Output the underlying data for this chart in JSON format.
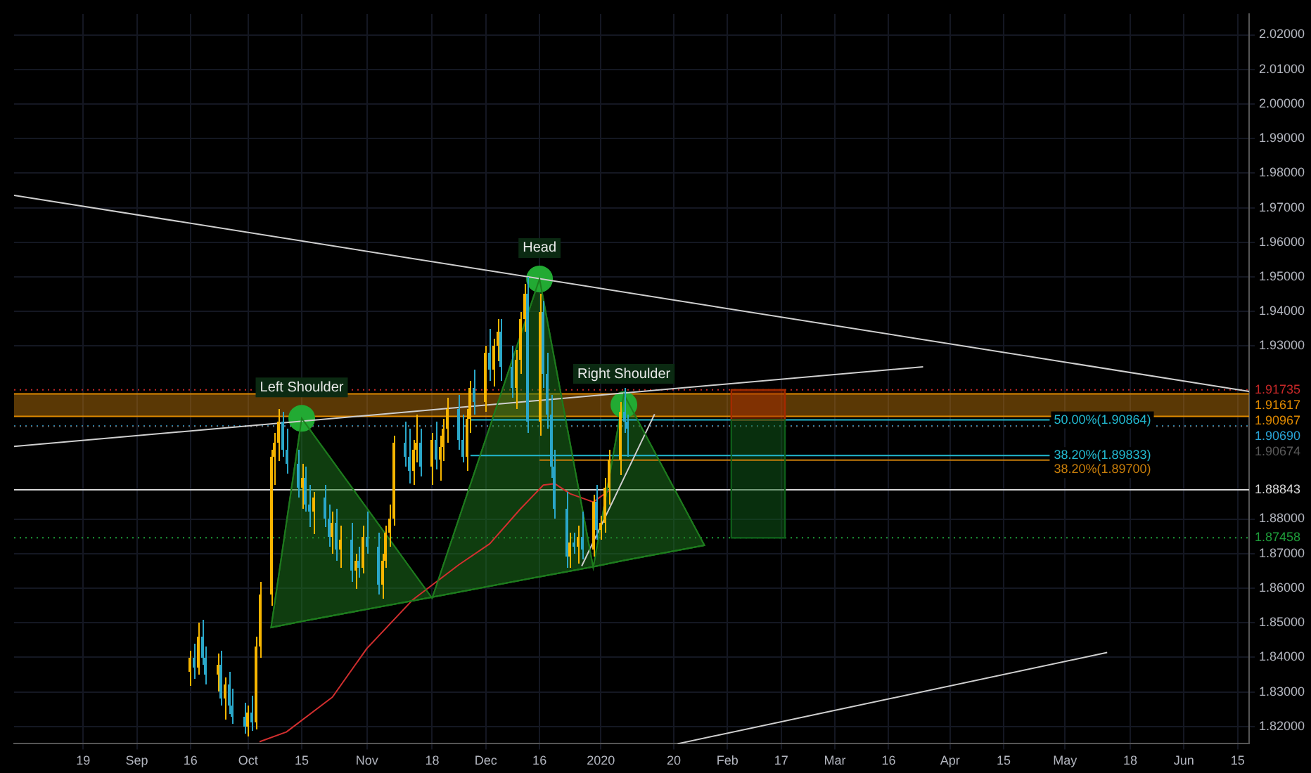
{
  "chart_data": {
    "type": "candlestick",
    "x": [
      "2019-09-16",
      "2019-09-17",
      "2019-09-18",
      "2019-09-19",
      "2019-09-20",
      "2019-09-23",
      "2019-09-24",
      "2019-09-25",
      "2019-09-26",
      "2019-09-27",
      "2019-09-30",
      "2019-10-01",
      "2019-10-02",
      "2019-10-03",
      "2019-10-04",
      "2019-10-07",
      "2019-10-08",
      "2019-10-09",
      "2019-10-10",
      "2019-10-11",
      "2019-10-14",
      "2019-10-15",
      "2019-10-16",
      "2019-10-17",
      "2019-10-18",
      "2019-10-21",
      "2019-10-22",
      "2019-10-23",
      "2019-10-24",
      "2019-10-25",
      "2019-10-28",
      "2019-10-29",
      "2019-10-30",
      "2019-10-31",
      "2019-11-01",
      "2019-11-04",
      "2019-11-05",
      "2019-11-06",
      "2019-11-07",
      "2019-11-08",
      "2019-11-11",
      "2019-11-12",
      "2019-11-13",
      "2019-11-14",
      "2019-11-15",
      "2019-11-18",
      "2019-11-19",
      "2019-11-20",
      "2019-11-21",
      "2019-11-22",
      "2019-11-25",
      "2019-11-26",
      "2019-11-27",
      "2019-11-28",
      "2019-11-29",
      "2019-12-02",
      "2019-12-03",
      "2019-12-04",
      "2019-12-05",
      "2019-12-06",
      "2019-12-09",
      "2019-12-10",
      "2019-12-11",
      "2019-12-12",
      "2019-12-13",
      "2019-12-16",
      "2019-12-17",
      "2019-12-18",
      "2019-12-19",
      "2019-12-20",
      "2019-12-23",
      "2019-12-24",
      "2019-12-25",
      "2019-12-26",
      "2019-12-27",
      "2019-12-30",
      "2019-12-31",
      "2020-01-01",
      "2020-01-02",
      "2020-01-03",
      "2020-01-06",
      "2020-01-07",
      "2020-01-08"
    ],
    "ohlc": [
      [
        1.836,
        1.842,
        1.832,
        1.84
      ],
      [
        1.84,
        1.844,
        1.834,
        1.837
      ],
      [
        1.837,
        1.85,
        1.835,
        1.846
      ],
      [
        1.846,
        1.851,
        1.838,
        1.84
      ],
      [
        1.84,
        1.843,
        1.832,
        1.835
      ],
      [
        1.835,
        1.841,
        1.83,
        1.838
      ],
      [
        1.838,
        1.842,
        1.826,
        1.828
      ],
      [
        1.828,
        1.834,
        1.822,
        1.832
      ],
      [
        1.832,
        1.836,
        1.824,
        1.826
      ],
      [
        1.826,
        1.831,
        1.821,
        1.823
      ],
      [
        1.823,
        1.827,
        1.818,
        1.82
      ],
      [
        1.82,
        1.826,
        1.817,
        1.824
      ],
      [
        1.824,
        1.829,
        1.819,
        1.821
      ],
      [
        1.821,
        1.846,
        1.819,
        1.843
      ],
      [
        1.843,
        1.862,
        1.84,
        1.858
      ],
      [
        1.858,
        1.9,
        1.855,
        1.898
      ],
      [
        1.898,
        1.905,
        1.89,
        1.902
      ],
      [
        1.902,
        1.912,
        1.897,
        1.908
      ],
      [
        1.908,
        1.911,
        1.898,
        1.9
      ],
      [
        1.9,
        1.906,
        1.893,
        1.896
      ],
      [
        1.896,
        1.9,
        1.886,
        1.889
      ],
      [
        1.889,
        1.896,
        1.883,
        1.892
      ],
      [
        1.892,
        1.895,
        1.882,
        1.884
      ],
      [
        1.884,
        1.89,
        1.878,
        1.882
      ],
      [
        1.882,
        1.888,
        1.876,
        1.886
      ],
      [
        1.886,
        1.89,
        1.878,
        1.88
      ],
      [
        1.88,
        1.884,
        1.872,
        1.875
      ],
      [
        1.875,
        1.882,
        1.87,
        1.879
      ],
      [
        1.879,
        1.883,
        1.868,
        1.871
      ],
      [
        1.871,
        1.878,
        1.866,
        1.874
      ],
      [
        1.874,
        1.879,
        1.862,
        1.865
      ],
      [
        1.865,
        1.87,
        1.86,
        1.868
      ],
      [
        1.868,
        1.872,
        1.863,
        1.866
      ],
      [
        1.866,
        1.878,
        1.864,
        1.875
      ],
      [
        1.875,
        1.882,
        1.87,
        1.872
      ],
      [
        1.872,
        1.876,
        1.858,
        1.861
      ],
      [
        1.861,
        1.87,
        1.857,
        1.868
      ],
      [
        1.868,
        1.878,
        1.866,
        1.876
      ],
      [
        1.876,
        1.884,
        1.872,
        1.88
      ],
      [
        1.88,
        1.904,
        1.878,
        1.902
      ],
      [
        1.902,
        1.908,
        1.895,
        1.898
      ],
      [
        1.898,
        1.906,
        1.89,
        1.894
      ],
      [
        1.894,
        1.903,
        1.89,
        1.9
      ],
      [
        1.9,
        1.91,
        1.896,
        1.902
      ],
      [
        1.902,
        1.906,
        1.892,
        1.895
      ],
      [
        1.895,
        1.905,
        1.89,
        1.903
      ],
      [
        1.903,
        1.908,
        1.894,
        1.897
      ],
      [
        1.897,
        1.904,
        1.891,
        1.901
      ],
      [
        1.901,
        1.909,
        1.897,
        1.906
      ],
      [
        1.906,
        1.915,
        1.902,
        1.912
      ],
      [
        1.912,
        1.916,
        1.9,
        1.903
      ],
      [
        1.903,
        1.91,
        1.896,
        1.898
      ],
      [
        1.898,
        1.912,
        1.894,
        1.909
      ],
      [
        1.909,
        1.92,
        1.905,
        1.918
      ],
      [
        1.918,
        1.923,
        1.91,
        1.914
      ],
      [
        1.914,
        1.93,
        1.911,
        1.928
      ],
      [
        1.928,
        1.935,
        1.92,
        1.923
      ],
      [
        1.923,
        1.932,
        1.918,
        1.93
      ],
      [
        1.93,
        1.938,
        1.926,
        1.934
      ],
      [
        1.934,
        1.938,
        1.92,
        1.924
      ],
      [
        1.924,
        1.93,
        1.915,
        1.918
      ],
      [
        1.918,
        1.929,
        1.912,
        1.926
      ],
      [
        1.926,
        1.94,
        1.922,
        1.938
      ],
      [
        1.938,
        1.948,
        1.934,
        1.945
      ],
      [
        1.945,
        1.95,
        1.905,
        1.908
      ],
      [
        1.908,
        1.945,
        1.904,
        1.94
      ],
      [
        1.94,
        1.943,
        1.918,
        1.922
      ],
      [
        1.922,
        1.928,
        1.906,
        1.91
      ],
      [
        1.91,
        1.916,
        1.892,
        1.895
      ],
      [
        1.895,
        1.9,
        1.88,
        1.883
      ],
      [
        1.883,
        1.888,
        1.866,
        1.869
      ],
      [
        1.869,
        1.876,
        1.866,
        1.873
      ],
      [
        1.873,
        1.876,
        1.87,
        1.872
      ],
      [
        1.872,
        1.878,
        1.867,
        1.875
      ],
      [
        1.875,
        1.882,
        1.868,
        1.871
      ],
      [
        1.871,
        1.887,
        1.869,
        1.885
      ],
      [
        1.885,
        1.89,
        1.874,
        1.877
      ],
      [
        1.877,
        1.881,
        1.874,
        1.879
      ],
      [
        1.879,
        1.892,
        1.876,
        1.889
      ],
      [
        1.889,
        1.9,
        1.884,
        1.897
      ],
      [
        1.897,
        1.914,
        1.893,
        1.911
      ],
      [
        1.911,
        1.918,
        1.905,
        1.908
      ],
      [
        1.908,
        1.91,
        1.898,
        1.906
      ]
    ],
    "colors": [
      "#f7b500",
      "#2aa7c9",
      "#f7b500",
      "#2aa7c9",
      "#2aa7c9",
      "#f7b500",
      "#2aa7c9",
      "#f7b500",
      "#2aa7c9",
      "#2aa7c9",
      "#2aa7c9",
      "#f7b500",
      "#2aa7c9",
      "#f7b500",
      "#f7b500",
      "#f7b500",
      "#f7b500",
      "#f7b500",
      "#2aa7c9",
      "#2aa7c9",
      "#2aa7c9",
      "#f7b500",
      "#2aa7c9",
      "#2aa7c9",
      "#f7b500",
      "#2aa7c9",
      "#2aa7c9",
      "#f7b500",
      "#2aa7c9",
      "#f7b500",
      "#2aa7c9",
      "#f7b500",
      "#2aa7c9",
      "#f7b500",
      "#2aa7c9",
      "#2aa7c9",
      "#f7b500",
      "#f7b500",
      "#f7b500",
      "#f7b500",
      "#2aa7c9",
      "#2aa7c9",
      "#f7b500",
      "#f7b500",
      "#2aa7c9",
      "#f7b500",
      "#2aa7c9",
      "#f7b500",
      "#f7b500",
      "#f7b500",
      "#2aa7c9",
      "#2aa7c9",
      "#f7b500",
      "#f7b500",
      "#2aa7c9",
      "#f7b500",
      "#2aa7c9",
      "#f7b500",
      "#f7b500",
      "#2aa7c9",
      "#2aa7c9",
      "#f7b500",
      "#f7b500",
      "#f7b500",
      "#2aa7c9",
      "#f7b500",
      "#2aa7c9",
      "#2aa7c9",
      "#2aa7c9",
      "#2aa7c9",
      "#2aa7c9",
      "#f7b500",
      "#2aa7c9",
      "#f7b500",
      "#2aa7c9",
      "#f7b500",
      "#2aa7c9",
      "#f7b500",
      "#f7b500",
      "#f7b500",
      "#f7b500",
      "#2aa7c9",
      "#2aa7c9"
    ],
    "xlim": [
      "2019-08-01",
      "2020-06-18"
    ],
    "xticks": [
      {
        "value": "2019-08-19",
        "label": "19"
      },
      {
        "value": "2019-09-02",
        "label": "Sep"
      },
      {
        "value": "2019-09-16",
        "label": "16"
      },
      {
        "value": "2019-10-01",
        "label": "Oct"
      },
      {
        "value": "2019-10-15",
        "label": "15"
      },
      {
        "value": "2019-11-01",
        "label": "Nov"
      },
      {
        "value": "2019-11-18",
        "label": "18"
      },
      {
        "value": "2019-12-02",
        "label": "Dec"
      },
      {
        "value": "2019-12-16",
        "label": "16"
      },
      {
        "value": "2020-01-01",
        "label": "2020"
      },
      {
        "value": "2020-01-20",
        "label": "20"
      },
      {
        "value": "2020-02-03",
        "label": "Feb"
      },
      {
        "value": "2020-02-17",
        "label": "17"
      },
      {
        "value": "2020-03-02",
        "label": "Mar"
      },
      {
        "value": "2020-03-16",
        "label": "16"
      },
      {
        "value": "2020-04-01",
        "label": "Apr"
      },
      {
        "value": "2020-04-15",
        "label": "15"
      },
      {
        "value": "2020-05-01",
        "label": "May"
      },
      {
        "value": "2020-05-18",
        "label": "18"
      },
      {
        "value": "2020-06-01",
        "label": "Jun"
      },
      {
        "value": "2020-06-15",
        "label": "15"
      }
    ],
    "ylim": [
      1.815,
      2.026
    ],
    "yticks": [
      {
        "value": 1.82,
        "label": "1.82000"
      },
      {
        "value": 1.83,
        "label": "1.83000"
      },
      {
        "value": 1.84,
        "label": "1.84000"
      },
      {
        "value": 1.85,
        "label": "1.85000"
      },
      {
        "value": 1.86,
        "label": "1.86000"
      },
      {
        "value": 1.87,
        "label": "1.87000"
      },
      {
        "value": 1.88,
        "label": "1.88000"
      },
      {
        "value": 1.93,
        "label": "1.93000"
      },
      {
        "value": 1.94,
        "label": "1.94000"
      },
      {
        "value": 1.95,
        "label": "1.95000"
      },
      {
        "value": 1.96,
        "label": "1.96000"
      },
      {
        "value": 1.97,
        "label": "1.97000"
      },
      {
        "value": 1.98,
        "label": "1.98000"
      },
      {
        "value": 1.99,
        "label": "1.99000"
      },
      {
        "value": 2.0,
        "label": "2.00000"
      },
      {
        "value": 2.01,
        "label": "2.01000"
      },
      {
        "value": 2.02,
        "label": "2.02000"
      }
    ],
    "grid": true,
    "legend": false,
    "bands": [
      {
        "axis": "y",
        "from": 1.90967,
        "to": 1.91617,
        "color": "#c77d0a"
      }
    ],
    "ref_lines": [
      {
        "axis": "y",
        "value": 1.91735,
        "label": "1.91735",
        "color": "#c62828",
        "line_style": "dotted"
      },
      {
        "axis": "y",
        "value": 1.91617,
        "label": "1.91617",
        "color": "#e08a00",
        "line_style": "solid"
      },
      {
        "axis": "y",
        "value": 1.90967,
        "label": "1.90967",
        "color": "#e08a00",
        "line_style": "solid"
      },
      {
        "axis": "y",
        "value": 1.9069,
        "label": "1.90690",
        "color": "#29a3d6",
        "line_style": "dotted"
      },
      {
        "axis": "y",
        "value": 1.90674,
        "label": "1.90674",
        "color": "#5a5a5a",
        "line_style": "dotted"
      },
      {
        "axis": "y",
        "value": 1.88843,
        "label": "1.88843",
        "color": "#d8d8d8",
        "line_style": "solid"
      },
      {
        "axis": "y",
        "value": 1.87458,
        "label": "1.87458",
        "color": "#1e9e3a",
        "line_style": "dotted"
      }
    ],
    "annotations": [
      {
        "text": "Left Shoulder",
        "x": "2019-10-15",
        "y": 1.9091
      },
      {
        "text": "Head",
        "x": "2019-12-16",
        "y": 1.9494
      },
      {
        "text": "Right Shoulder",
        "x": "2020-01-07",
        "y": 1.913
      }
    ],
    "series": [
      {
        "type": "line",
        "color": "#1e7a1e",
        "x": [
          "2019-10-07",
          "2019-10-15",
          "2019-11-18",
          "2019-12-16",
          "2019-12-30",
          "2020-01-07",
          "2020-01-28"
        ],
        "values": [
          1.8486,
          1.8504,
          1.8574,
          1.8633,
          1.8662,
          1.868,
          1.8724
        ],
        "upper": [
          1.8486,
          1.9091,
          1.8571,
          1.9494,
          1.866,
          1.916,
          1.8724
        ],
        "lower": [
          1.8486,
          1.8504,
          1.8574,
          1.8633,
          1.8662,
          1.868,
          1.8724
        ]
      },
      {
        "type": "line",
        "color": "#a52a00",
        "x": [
          "2020-02-04",
          "2020-02-18"
        ],
        "values": [
          1.90864,
          1.90864
        ],
        "upper": [
          1.91735,
          1.91735
        ],
        "lower": [
          1.90864,
          1.90864
        ]
      },
      {
        "type": "line",
        "color": "#0f5e1a",
        "x": [
          "2020-02-04",
          "2020-02-18"
        ],
        "values": [
          1.87458,
          1.87458
        ],
        "upper": [
          1.90864,
          1.90864
        ],
        "lower": [
          1.87458,
          1.87458
        ]
      },
      {
        "type": "line",
        "color": "#d32f2f",
        "x": [
          "2019-10-04",
          "2019-10-11",
          "2019-10-23",
          "2019-11-01",
          "2019-11-13",
          "2019-11-25",
          "2019-12-03",
          "2019-12-11",
          "2019-12-17",
          "2019-12-20",
          "2019-12-24",
          "2019-12-30",
          "2020-01-03"
        ],
        "values": [
          1.8156,
          1.8184,
          1.8285,
          1.8426,
          1.8567,
          1.8668,
          1.8728,
          1.8829,
          1.8898,
          1.8902,
          1.8873,
          1.8849,
          1.8881
        ]
      },
      {
        "type": "line",
        "color": "#cfcfcf",
        "x": [
          "2019-08-01",
          "2020-06-18"
        ],
        "values": [
          1.9736,
          1.9169
        ]
      },
      {
        "type": "line",
        "color": "#cfcfcf",
        "x": [
          "2019-08-01",
          "2020-03-25"
        ],
        "values": [
          1.901,
          1.924
        ]
      },
      {
        "type": "line",
        "color": "#cfcfcf",
        "x": [
          "2020-01-21",
          "2020-05-12"
        ],
        "values": [
          1.815,
          1.8414
        ]
      },
      {
        "type": "line",
        "color": "#cfcfcf",
        "x": [
          "2019-12-27",
          "2020-01-15"
        ],
        "values": [
          1.8664,
          1.9103
        ]
      },
      {
        "type": "line",
        "name": "50.00%(1.90864)",
        "color": "#22b8cf",
        "x": [
          "2019-11-28",
          "2020-04-27"
        ],
        "values": [
          1.90864,
          1.90864
        ]
      },
      {
        "type": "line",
        "name": "38.20%(1.89833)",
        "color": "#22b8cf",
        "x": [
          "2019-11-28",
          "2020-04-27"
        ],
        "values": [
          1.89833,
          1.89833
        ]
      },
      {
        "type": "line",
        "name": "38.20%(1.89700)",
        "color": "#c77d0a",
        "x": [
          "2019-12-16",
          "2020-04-27"
        ],
        "values": [
          1.897,
          1.897
        ]
      },
      {
        "type": "scatter",
        "color": "#22aa33",
        "marker": "circle",
        "x": [
          "2019-10-15",
          "2019-12-16",
          "2020-01-07"
        ],
        "values": [
          1.9091,
          1.9494,
          1.913
        ]
      }
    ]
  }
}
